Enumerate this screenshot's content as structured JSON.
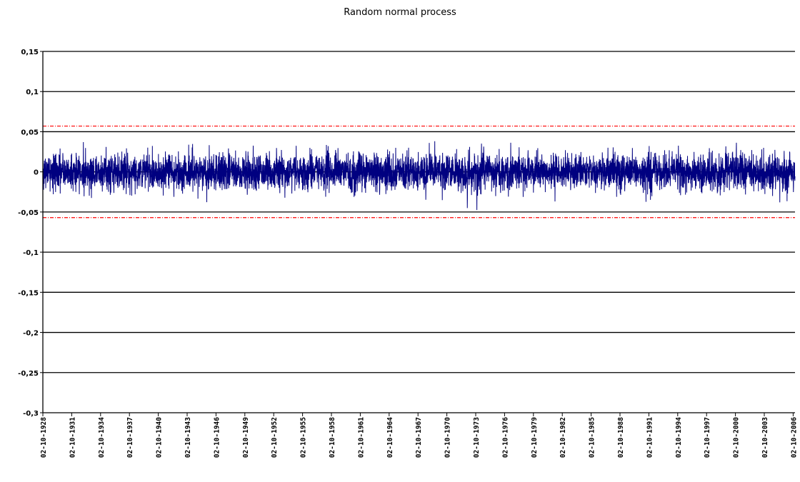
{
  "chart_data": {
    "type": "line",
    "title": "Random normal process",
    "xlabel": "",
    "ylabel": "",
    "ylim": [
      -0.3,
      0.15
    ],
    "y_ticks": [
      0.15,
      0.1,
      0.05,
      0,
      -0.05,
      -0.1,
      -0.15,
      -0.2,
      -0.25,
      -0.3
    ],
    "y_tick_labels": [
      "0,15",
      "0,1",
      "0,05",
      "0",
      "-0,05",
      "-0,1",
      "-0,15",
      "-0,2",
      "-0,25",
      "-0,3"
    ],
    "x_tick_labels": [
      "02-10-1928",
      "02-10-1931",
      "02-10-1934",
      "02-10-1937",
      "02-10-1940",
      "02-10-1943",
      "02-10-1946",
      "02-10-1949",
      "02-10-1952",
      "02-10-1955",
      "02-10-1958",
      "02-10-1961",
      "02-10-1964",
      "02-10-1967",
      "02-10-1970",
      "02-10-1973",
      "02-10-1976",
      "02-10-1979",
      "02-10-1982",
      "02-10-1985",
      "02-10-1988",
      "02-10-1991",
      "02-10-1994",
      "02-10-1997",
      "02-10-2000",
      "02-10-2003",
      "02-10-2006"
    ],
    "x_range": [
      "02-10-1928",
      "02-10-2008"
    ],
    "grid": true,
    "legend": "none",
    "series": [
      {
        "type": "noise",
        "mean": 0,
        "std": 0.0115,
        "spike_max": 0.047,
        "spike_min": -0.051,
        "color": "#000080"
      }
    ],
    "reference_lines": [
      {
        "y": 0.057,
        "style": "dash-dot",
        "color": "#ff0000"
      },
      {
        "y": -0.057,
        "style": "dash-dot",
        "color": "#ff0000"
      }
    ]
  }
}
